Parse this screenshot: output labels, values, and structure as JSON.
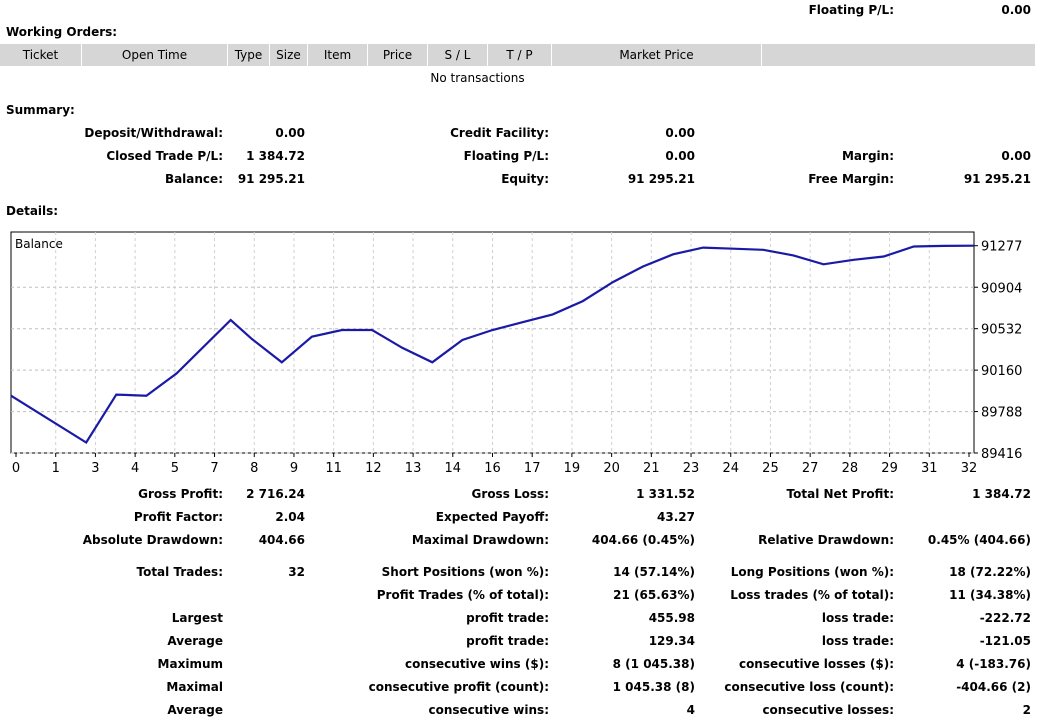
{
  "top": {
    "floating_label": "Floating P/L:",
    "floating_value": "0.00"
  },
  "working_orders": {
    "title": "Working Orders:",
    "columns": [
      "Ticket",
      "Open Time",
      "Type",
      "Size",
      "Item",
      "Price",
      "S / L",
      "T / P",
      "Market Price",
      ""
    ],
    "empty_text": "No transactions"
  },
  "summary": {
    "title": "Summary:",
    "deposit_label": "Deposit/Withdrawal:",
    "deposit_value": "0.00",
    "closed_label": "Closed Trade P/L:",
    "closed_value": "1 384.72",
    "balance_label": "Balance:",
    "balance_value": "91 295.21",
    "credit_label": "Credit Facility:",
    "credit_value": "0.00",
    "floating_label": "Floating P/L:",
    "floating_value": "0.00",
    "equity_label": "Equity:",
    "equity_value": "91 295.21",
    "margin_label": "Margin:",
    "margin_value": "0.00",
    "free_margin_label": "Free Margin:",
    "free_margin_value": "91 295.21"
  },
  "details": {
    "title": "Details:"
  },
  "chart_data": {
    "type": "line",
    "title": "Balance",
    "x_ticks": [
      "0",
      "1",
      "3",
      "4",
      "5",
      "7",
      "8",
      "9",
      "11",
      "12",
      "13",
      "14",
      "16",
      "17",
      "19",
      "20",
      "21",
      "23",
      "24",
      "25",
      "27",
      "28",
      "29",
      "31",
      "32"
    ],
    "y_ticks": [
      "91277",
      "90904",
      "90532",
      "90160",
      "89788",
      "89416"
    ],
    "y_tick_values": [
      91277,
      90904,
      90532,
      90160,
      89788,
      89416
    ],
    "ylim": [
      89416,
      91400
    ],
    "xlim": [
      0,
      32
    ],
    "grid": true,
    "series": [
      {
        "color": "#1a1aa6",
        "x": [
          0,
          2.5,
          3.5,
          4.5,
          5.5,
          7.3,
          8,
          9,
          10,
          11,
          12,
          13,
          14,
          15,
          16,
          17,
          18,
          19,
          20,
          21,
          22,
          23,
          24,
          25,
          26,
          27,
          28,
          29,
          30,
          31,
          32
        ],
        "y": [
          89930,
          89510,
          89940,
          89930,
          90130,
          90610,
          90440,
          90230,
          90460,
          90520,
          90520,
          90360,
          90230,
          90430,
          90520,
          90590,
          90660,
          90780,
          90950,
          91090,
          91200,
          91260,
          91250,
          91240,
          91190,
          91110,
          91150,
          91180,
          91270,
          91275,
          91277
        ]
      }
    ]
  },
  "stats": {
    "gross_profit_label": "Gross Profit:",
    "gross_profit": "2 716.24",
    "gross_loss_label": "Gross Loss:",
    "gross_loss": "1 331.52",
    "total_net_label": "Total Net Profit:",
    "total_net": "1 384.72",
    "profit_factor_label": "Profit Factor:",
    "profit_factor": "2.04",
    "expected_payoff_label": "Expected Payoff:",
    "expected_payoff": "43.27",
    "abs_dd_label": "Absolute Drawdown:",
    "abs_dd": "404.66",
    "max_dd_label": "Maximal Drawdown:",
    "max_dd": "404.66 (0.45%)",
    "rel_dd_label": "Relative Drawdown:",
    "rel_dd": "0.45% (404.66)",
    "total_trades_label": "Total Trades:",
    "total_trades": "32",
    "short_label": "Short Positions (won %):",
    "short": "14 (57.14%)",
    "long_label": "Long Positions (won %):",
    "long": "18 (72.22%)",
    "profit_trades_label": "Profit Trades (% of total):",
    "profit_trades": "21 (65.63%)",
    "loss_trades_label": "Loss trades (% of total):",
    "loss_trades": "11 (34.38%)",
    "rows": [
      {
        "c1": "Largest",
        "c2": "profit trade:",
        "v2": "455.98",
        "c3": "loss trade:",
        "v3": "-222.72"
      },
      {
        "c1": "Average",
        "c2": "profit trade:",
        "v2": "129.34",
        "c3": "loss trade:",
        "v3": "-121.05"
      },
      {
        "c1": "Maximum",
        "c2": "consecutive wins ($):",
        "v2": "8 (1 045.38)",
        "c3": "consecutive losses ($):",
        "v3": "4 (-183.76)"
      },
      {
        "c1": "Maximal",
        "c2": "consecutive profit (count):",
        "v2": "1 045.38 (8)",
        "c3": "consecutive loss (count):",
        "v3": "-404.66 (2)"
      },
      {
        "c1": "Average",
        "c2": "consecutive wins:",
        "v2": "4",
        "c3": "consecutive losses:",
        "v3": "2"
      }
    ]
  }
}
